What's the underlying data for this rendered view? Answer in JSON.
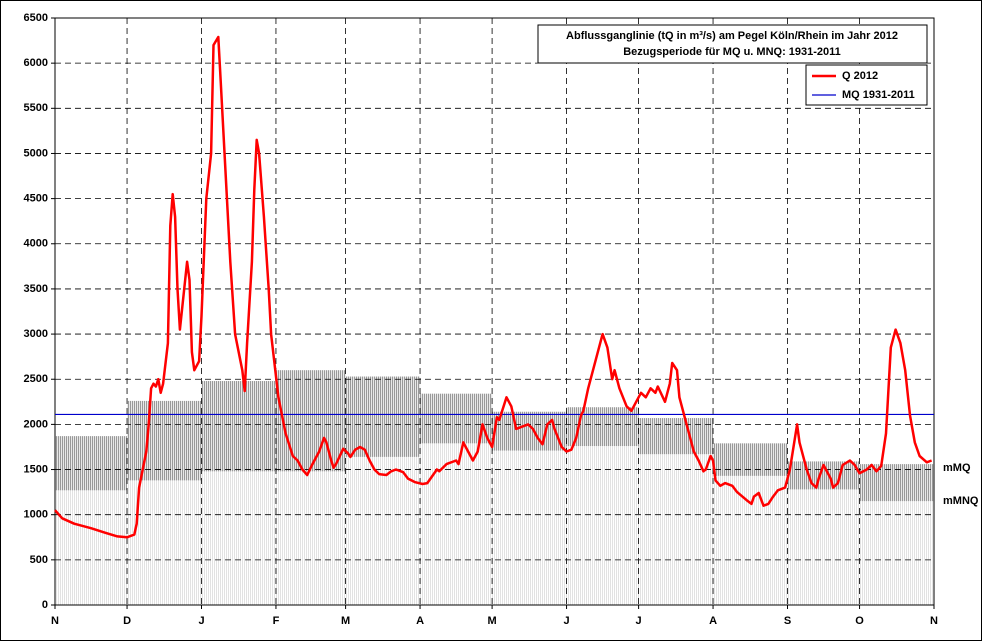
{
  "chart_data": {
    "type": "line",
    "title": "Abflussganglinie (tQ in m³/s) am Pegel Köln/Rhein im Jahr 2012",
    "subtitle": "Bezugsperiode für MQ u. MNQ: 1931-2011",
    "xlim": [
      0,
      366
    ],
    "xticks": [
      {
        "value": 0,
        "label": "N"
      },
      {
        "value": 30,
        "label": "D"
      },
      {
        "value": 61,
        "label": "J"
      },
      {
        "value": 92,
        "label": "F"
      },
      {
        "value": 121,
        "label": "M"
      },
      {
        "value": 152,
        "label": "A"
      },
      {
        "value": 182,
        "label": "M"
      },
      {
        "value": 213,
        "label": "J"
      },
      {
        "value": 243,
        "label": "J"
      },
      {
        "value": 274,
        "label": "A"
      },
      {
        "value": 305,
        "label": "S"
      },
      {
        "value": 335,
        "label": "O"
      },
      {
        "value": 366,
        "label": "N"
      }
    ],
    "ylim": [
      0,
      6500
    ],
    "yticks": [
      0,
      500,
      1000,
      1500,
      2000,
      2500,
      3000,
      3500,
      4000,
      4500,
      5000,
      5500,
      6000,
      6500
    ],
    "grid": true,
    "legend": "top-right",
    "x": [
      0,
      3,
      8,
      15,
      21,
      26,
      30,
      33,
      34,
      35,
      38,
      39,
      40,
      41,
      42,
      43,
      44,
      45,
      47,
      48,
      49,
      50,
      51,
      52,
      53,
      55,
      56,
      57,
      58,
      60,
      61,
      63,
      65,
      66,
      68,
      69,
      71,
      73,
      75,
      78,
      79,
      80,
      82,
      83,
      84,
      85,
      87,
      89,
      90,
      93,
      96,
      99,
      101,
      103,
      105,
      107,
      110,
      112,
      113,
      115,
      116,
      117,
      120,
      122,
      123,
      125,
      127,
      129,
      131,
      133,
      135,
      138,
      140,
      142,
      145,
      147,
      150,
      153,
      155,
      159,
      160,
      163,
      167,
      168,
      170,
      172,
      174,
      176,
      178,
      180,
      182,
      184,
      185,
      188,
      190,
      192,
      195,
      197,
      199,
      201,
      203,
      205,
      207,
      208,
      211,
      213,
      215,
      217,
      219,
      220,
      222,
      225,
      228,
      230,
      232,
      233,
      235,
      238,
      240,
      243,
      244,
      246,
      248,
      250,
      251,
      254,
      256,
      257,
      259,
      260,
      263,
      265,
      266,
      268,
      270,
      271,
      273,
      274,
      275,
      277,
      279,
      282,
      284,
      288,
      290,
      291,
      293,
      295,
      297,
      299,
      301,
      304,
      306,
      309,
      310,
      313,
      315,
      317,
      318,
      320,
      323,
      324,
      326,
      328,
      331,
      333,
      335,
      338,
      340,
      342,
      344,
      346,
      348,
      350,
      352,
      354,
      356,
      358,
      360,
      363,
      365
    ],
    "series": [
      {
        "name": "Q 2012",
        "color": "#ff0000",
        "values": [
          1050,
          960,
          900,
          850,
          800,
          760,
          750,
          780,
          900,
          1300,
          1700,
          2000,
          2400,
          2450,
          2420,
          2500,
          2350,
          2450,
          2900,
          4200,
          4550,
          4300,
          3500,
          3050,
          3300,
          3800,
          3600,
          2800,
          2600,
          2700,
          3200,
          4500,
          5000,
          6200,
          6290,
          5800,
          4800,
          3800,
          3000,
          2600,
          2370,
          2900,
          3800,
          4600,
          5150,
          5000,
          4300,
          3500,
          3000,
          2300,
          1900,
          1650,
          1600,
          1500,
          1440,
          1550,
          1700,
          1850,
          1800,
          1600,
          1520,
          1560,
          1730,
          1680,
          1640,
          1720,
          1750,
          1720,
          1600,
          1500,
          1450,
          1440,
          1480,
          1500,
          1470,
          1400,
          1360,
          1340,
          1350,
          1500,
          1480,
          1560,
          1600,
          1560,
          1800,
          1700,
          1600,
          1700,
          2000,
          1850,
          1750,
          2080,
          2050,
          2300,
          2200,
          1950,
          1980,
          2000,
          1950,
          1850,
          1780,
          2000,
          2050,
          1950,
          1750,
          1700,
          1720,
          1850,
          2100,
          2150,
          2400,
          2700,
          3000,
          2850,
          2500,
          2600,
          2400,
          2200,
          2150,
          2300,
          2350,
          2300,
          2400,
          2350,
          2420,
          2250,
          2450,
          2680,
          2600,
          2300,
          2000,
          1800,
          1700,
          1600,
          1480,
          1500,
          1650,
          1600,
          1380,
          1320,
          1350,
          1320,
          1250,
          1160,
          1120,
          1200,
          1240,
          1100,
          1120,
          1200,
          1270,
          1300,
          1500,
          2000,
          1800,
          1500,
          1350,
          1300,
          1400,
          1550,
          1400,
          1300,
          1350,
          1550,
          1600,
          1550,
          1460,
          1500,
          1550,
          1480,
          1540,
          1900,
          2850,
          3050,
          2900,
          2600,
          2100,
          1800,
          1650,
          1580,
          1600
        ]
      },
      {
        "name": "MQ 1931-2011",
        "color": "#0000cc",
        "value": 2110
      }
    ],
    "bands": [
      {
        "name": "mMQ",
        "values": [
          1870,
          2260,
          2480,
          2600,
          2530,
          2340,
          2140,
          2190,
          2070,
          1790,
          1590,
          1560
        ]
      },
      {
        "name": "mMNQ",
        "values": [
          1270,
          1380,
          1480,
          1480,
          1640,
          1790,
          1710,
          1760,
          1670,
          1430,
          1280,
          1150
        ]
      }
    ]
  }
}
